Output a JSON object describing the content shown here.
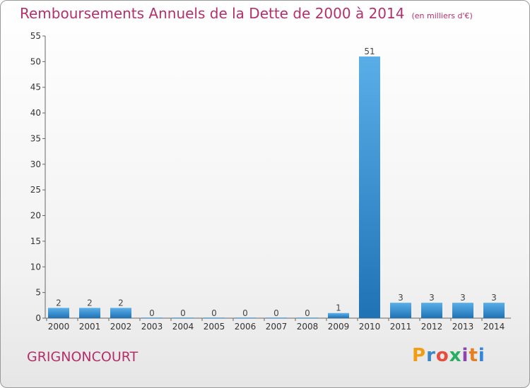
{
  "header": {
    "title": "Remboursements Annuels de la Dette de 2000 à 2014",
    "unit": "(en milliers d'€)"
  },
  "footer": {
    "commune": "GRIGNONCOURT",
    "logo": [
      "P",
      "r",
      "o",
      "x",
      "i",
      "t",
      "i"
    ]
  },
  "chart_data": {
    "type": "bar",
    "title": "Remboursements Annuels de la Dette de 2000 à 2014",
    "subtitle": "(en milliers d'€)",
    "xlabel": "",
    "ylabel": "",
    "categories": [
      "2000",
      "2001",
      "2002",
      "2003",
      "2004",
      "2005",
      "2006",
      "2007",
      "2008",
      "2009",
      "2010",
      "2011",
      "2012",
      "2013",
      "2014"
    ],
    "values": [
      2,
      2,
      2,
      0,
      0,
      0,
      0,
      0,
      0,
      1,
      51,
      3,
      3,
      3,
      3
    ],
    "ylim": [
      0,
      55
    ],
    "yticks": [
      0,
      5,
      10,
      15,
      20,
      25,
      30,
      35,
      40,
      45,
      50,
      55
    ],
    "grid": false,
    "legend": "none",
    "colors": {
      "bar_light": "#5aaee8",
      "bar_dark": "#1f73b5",
      "title": "#b2306b"
    }
  }
}
